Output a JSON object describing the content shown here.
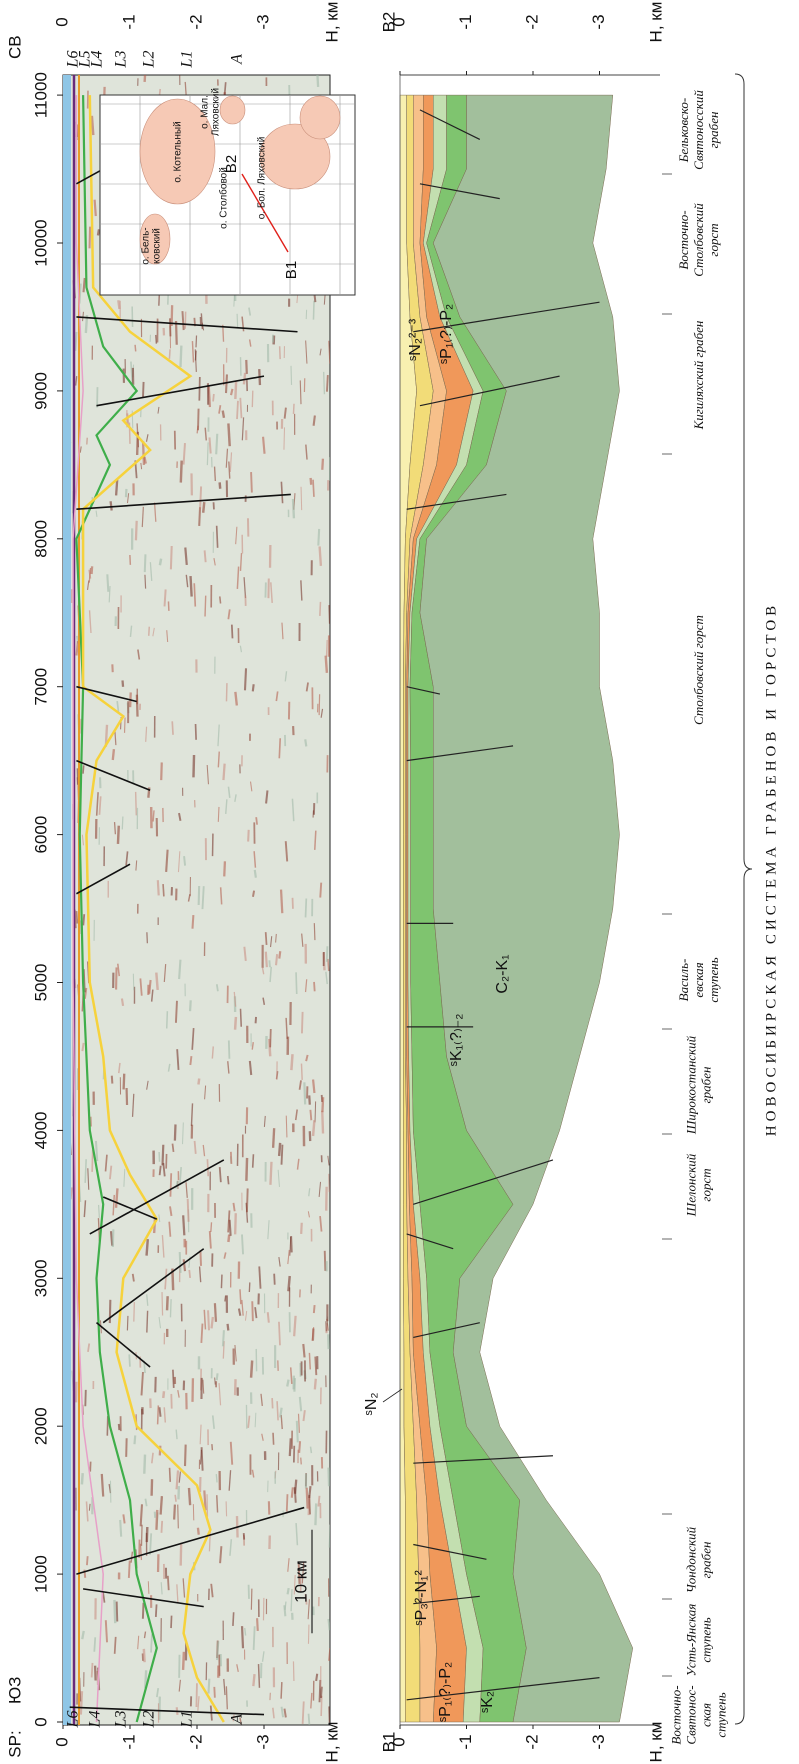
{
  "seismic_section": {
    "sp_label": "SP:",
    "sw_label": "ЮЗ",
    "ne_label": "СВ",
    "sp_ticks": [
      0,
      1000,
      2000,
      3000,
      4000,
      5000,
      6000,
      7000,
      8000,
      9000,
      10000,
      11000
    ],
    "depth_ticks": [
      0,
      -1,
      -2,
      -3
    ],
    "depth_axis_label": "H, км",
    "horizons_left": [
      "L6",
      "L4",
      "L3",
      "L2",
      "L1",
      "A"
    ],
    "horizons_right": [
      "L6",
      "L5",
      "L4",
      "L3",
      "L2",
      "L1",
      "A"
    ],
    "scale_bar": "10 км"
  },
  "location_map": {
    "islands": [
      {
        "lines": [
          "о. Бель-",
          "ковский"
        ]
      },
      {
        "lines": [
          "о. Котельный"
        ]
      },
      {
        "lines": [
          "о. Столбовой"
        ]
      },
      {
        "lines": [
          "о. Мал.",
          "Ляховский"
        ]
      },
      {
        "lines": [
          "о. Бол. Ляховский"
        ]
      }
    ],
    "profile_start": "В1",
    "profile_end": "В2"
  },
  "geologic_section": {
    "start_label": "В1",
    "end_label": "В2",
    "depth_ticks": [
      0,
      -1,
      -2,
      -3
    ],
    "depth_axis_label": "H, км",
    "units": [
      "ˢN₂",
      "ˢP₁₍?₎-P₂",
      "ˢK₂",
      "ˢP₃²-N₁²",
      "ˢK₁₍?₎₋₂",
      "C₂-K₁",
      "ˢN₂²⁻³",
      "ˢP₁₍?₎-P₂"
    ],
    "structures": [
      {
        "lines": [
          "Восточно-",
          "Святонос-",
          "ская",
          "ступень"
        ]
      },
      {
        "lines": [
          "Усть-Янская",
          "ступень"
        ]
      },
      {
        "lines": [
          "Чондонский",
          "грабен"
        ]
      },
      {
        "lines": [
          "Шелонский",
          "горст"
        ]
      },
      {
        "lines": [
          "Широкостанский",
          "грабен"
        ]
      },
      {
        "lines": [
          "Василь-",
          "евская",
          "ступень"
        ]
      },
      {
        "lines": [
          "Столбовский горст"
        ]
      },
      {
        "lines": [
          "Кигиляхский грабен"
        ]
      },
      {
        "lines": [
          "Восточно-",
          "Столбовский",
          "горст"
        ]
      },
      {
        "lines": [
          "Бельковско-",
          "Святоносский",
          "грабен"
        ]
      }
    ],
    "system_title": "НОВОСИБИРСКАЯ СИСТЕМА ГРАБЕНОВ И ГОРСТОВ"
  }
}
